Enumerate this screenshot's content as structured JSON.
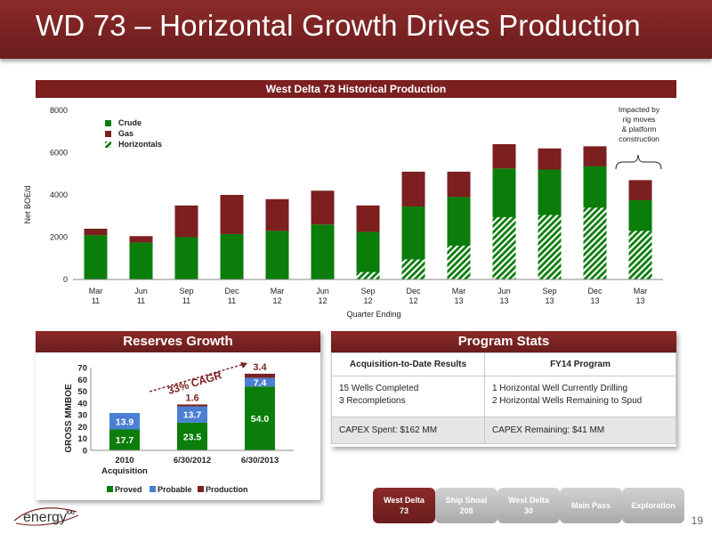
{
  "slide_title": "WD 73 – Horizontal Growth Drives Production",
  "chart_banner_title": "West Delta 73 Historical Production",
  "colors": {
    "crude": "#0a7d0a",
    "gas": "#7b1f1f",
    "probable": "#4a7fd4",
    "accent": "#7b1f1f",
    "nav_inactive": "#b8b8b8"
  },
  "chart_data": [
    {
      "type": "bar",
      "title": "West Delta 73 Historical Production",
      "xlabel": "Quarter Ending",
      "ylabel": "Net BOE/d",
      "ylim": [
        0,
        8000
      ],
      "yticks": [
        "0",
        "2000",
        "4000",
        "6000",
        "8000"
      ],
      "categories": [
        [
          "Mar",
          "11"
        ],
        [
          "Jun",
          "11"
        ],
        [
          "Sep",
          "11"
        ],
        [
          "Dec",
          "11"
        ],
        [
          "Mar",
          "12"
        ],
        [
          "Jun",
          "12"
        ],
        [
          "Sep",
          "12"
        ],
        [
          "Dec",
          "12"
        ],
        [
          "Mar",
          "13"
        ],
        [
          "Jun",
          "13"
        ],
        [
          "Sep",
          "13"
        ],
        [
          "Dec",
          "13"
        ],
        [
          "Mar",
          "13"
        ]
      ],
      "series": [
        {
          "name": "Crude",
          "values": [
            2100,
            1750,
            2000,
            2150,
            2300,
            2600,
            2250,
            3450,
            3900,
            5250,
            5200,
            5350,
            3750
          ]
        },
        {
          "name": "Gas",
          "values": [
            300,
            300,
            1500,
            1850,
            1500,
            1600,
            1250,
            1650,
            1200,
            1150,
            1000,
            950,
            950
          ]
        },
        {
          "name": "Horizontals",
          "values": [
            0,
            0,
            0,
            0,
            0,
            0,
            350,
            950,
            1600,
            2950,
            3050,
            3400,
            2300
          ]
        }
      ],
      "legend": [
        "Crude",
        "Gas",
        "Horizontals"
      ],
      "legend_position": "top-left",
      "annotation": {
        "text": [
          "Impacted by",
          "rig moves",
          "& platform",
          "construction"
        ]
      }
    },
    {
      "type": "bar",
      "title": "Reserves Growth",
      "ylabel": "GROSS MMBOE",
      "ylim": [
        0,
        70
      ],
      "yticks": [
        "0",
        "10",
        "20",
        "30",
        "40",
        "50",
        "60",
        "70"
      ],
      "categories": [
        [
          "2010",
          "Acquisition"
        ],
        [
          "6/30/2012"
        ],
        [
          "6/30/2013"
        ]
      ],
      "series": [
        {
          "name": "Proved",
          "values": [
            17.7,
            23.5,
            54.0
          ]
        },
        {
          "name": "Probable",
          "values": [
            13.9,
            13.7,
            7.4
          ]
        },
        {
          "name": "Production",
          "values": [
            0,
            1.6,
            3.4
          ]
        }
      ],
      "data_labels": {
        "proved": [
          "17.7",
          "23.5",
          "54.0"
        ],
        "probable": [
          "13.9",
          "13.7",
          "7.4"
        ],
        "production": [
          "",
          "1.6",
          "3.4"
        ]
      },
      "annotation": "33% CAGR",
      "legend_position": "bottom"
    }
  ],
  "reserves_panel": {
    "title": "Reserves Growth"
  },
  "stats": {
    "title": "Program Stats",
    "col1_header": "Acquisition-to-Date Results",
    "col2_header": "FY14 Program",
    "row1_col1": [
      "15 Wells Completed",
      "3 Recompletions"
    ],
    "row1_col2": [
      "1 Horizontal Well Currently Drilling",
      "2 Horizontal Wells Remaining to Spud"
    ],
    "row2_col1": "CAPEX Spent: $162 MM",
    "row2_col2": "CAPEX Remaining: $41 MM"
  },
  "nav": [
    {
      "label": [
        "West Delta",
        "73"
      ],
      "active": true
    },
    {
      "label": [
        "Ship Shoal",
        "208"
      ],
      "active": false
    },
    {
      "label": [
        "West Delta",
        "30"
      ],
      "active": false
    },
    {
      "label": [
        "Main Pass"
      ],
      "active": false
    },
    {
      "label": [
        "Exploration"
      ],
      "active": false
    }
  ],
  "logo_text": "energy",
  "logo_suffix": "XXI",
  "page_number": "19"
}
